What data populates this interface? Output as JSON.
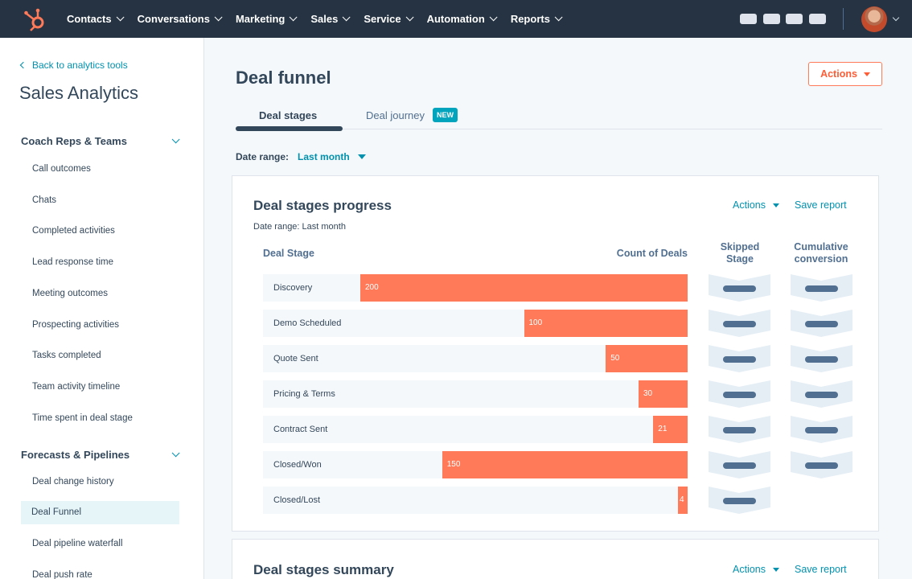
{
  "nav": {
    "items": [
      {
        "label": "Contacts"
      },
      {
        "label": "Conversations"
      },
      {
        "label": "Marketing"
      },
      {
        "label": "Sales"
      },
      {
        "label": "Service"
      },
      {
        "label": "Automation"
      },
      {
        "label": "Reports"
      }
    ],
    "logo_icon": "sprocket-icon",
    "accent": "#ff7a59"
  },
  "sidebar": {
    "back_link": "Back to analytics tools",
    "title": "Sales Analytics",
    "section1": {
      "label": "Coach Reps & Teams",
      "items": [
        "Call outcomes",
        "Chats",
        "Completed activities",
        "Lead response time",
        "Meeting outcomes",
        "Prospecting activities",
        "Tasks completed",
        "Team activity timeline",
        "Time spent in deal stage"
      ]
    },
    "section2": {
      "label": "Forecasts & Pipelines",
      "items": [
        "Deal change history",
        "Deal Funnel",
        "Deal pipeline waterfall",
        "Deal push rate"
      ],
      "active_index": 1
    }
  },
  "main": {
    "title": "Deal funnel",
    "actions_label": "Actions",
    "tabs": [
      {
        "label": "Deal stages"
      },
      {
        "label": "Deal journey",
        "badge": "NEW"
      }
    ],
    "date_range_label": "Date range:",
    "date_range_value": "Last month"
  },
  "card1": {
    "title": "Deal stages progress",
    "actions_label": "Actions",
    "save_label": "Save report",
    "subtitle": "Date range: Last month",
    "col_stage": "Deal Stage",
    "col_count": "Count of Deals",
    "col_skipped": "Skipped Stage",
    "col_cumulative": "Cumulative conversion"
  },
  "chart_data": {
    "type": "bar",
    "categories": [
      "Discovery",
      "Demo Scheduled",
      "Quote Sent",
      "Pricing & Terms",
      "Contract Sent",
      "Closed/Won",
      "Closed/Lost"
    ],
    "values": [
      200,
      100,
      50,
      30,
      21,
      150,
      4
    ],
    "title": "Deal stages progress",
    "xlabel": "Count of Deals",
    "ylabel": "Deal Stage",
    "bar_color": "#ff7a59",
    "orientation": "horizontal-right-aligned"
  },
  "card2": {
    "title": "Deal stages summary",
    "actions_label": "Actions",
    "save_label": "Save report"
  }
}
